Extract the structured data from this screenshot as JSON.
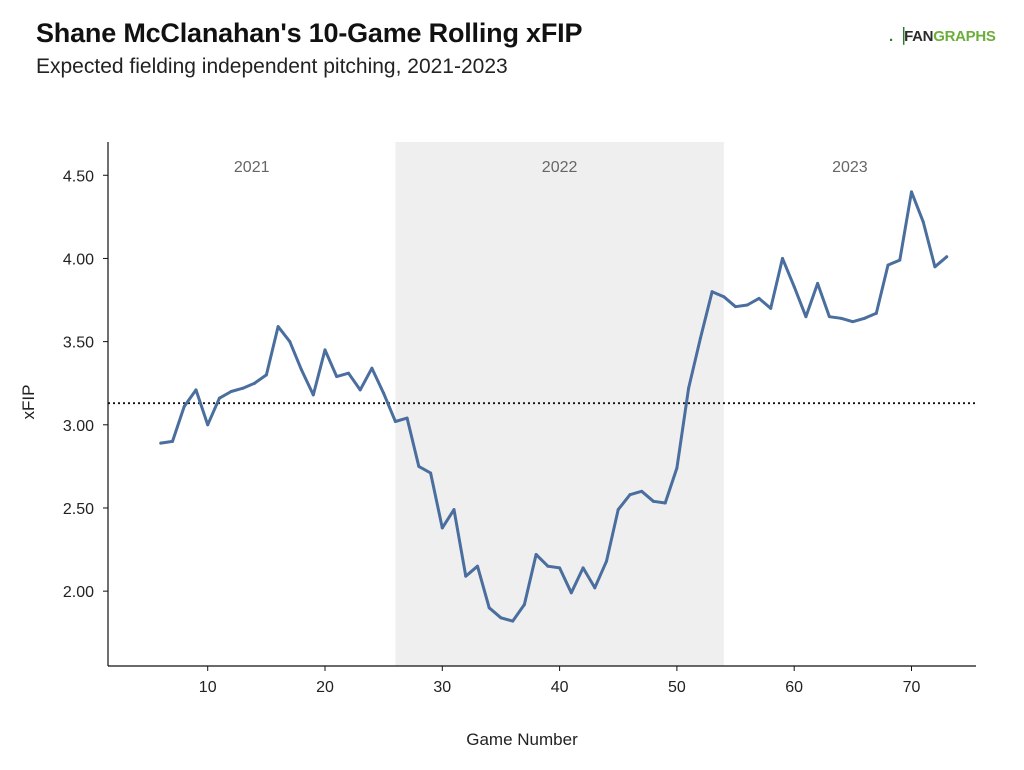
{
  "header": {
    "title": "Shane McClanahan's 10-Game Rolling xFIP",
    "subtitle": "Expected fielding independent pitching, 2021-2023",
    "logo_mark": ".▕",
    "logo_fan": "FAN",
    "logo_graphs": "GRAPHS"
  },
  "colors": {
    "line": "#4a6e9e",
    "band": "#efefef",
    "reference_line": "#111111"
  },
  "chart_data": {
    "type": "line",
    "title": "Shane McClanahan's 10-Game Rolling xFIP",
    "subtitle": "Expected fielding independent pitching, 2021-2023",
    "xlabel": "Game Number",
    "ylabel": "xFIP",
    "xlim": [
      1.5,
      75.5
    ],
    "ylim": [
      1.55,
      4.7
    ],
    "xticks": [
      10,
      20,
      30,
      40,
      50,
      60,
      70
    ],
    "yticks": [
      2.0,
      2.5,
      3.0,
      3.5,
      4.0,
      4.5
    ],
    "ytick_labels": [
      "2.00",
      "2.50",
      "3.00",
      "3.50",
      "4.00",
      "4.50"
    ],
    "reference_line": {
      "y": 3.13,
      "style": "dotted"
    },
    "season_bands": [
      {
        "label": "2021",
        "start": 1.5,
        "end": 26,
        "shaded": false
      },
      {
        "label": "2022",
        "start": 26,
        "end": 54,
        "shaded": true
      },
      {
        "label": "2023",
        "start": 54,
        "end": 75.5,
        "shaded": false
      }
    ],
    "grid": false,
    "series": [
      {
        "x": [
          6,
          7,
          8,
          9,
          10,
          11,
          12,
          13,
          14,
          15,
          16,
          17,
          18,
          19,
          20,
          21,
          22,
          23,
          24,
          25,
          26,
          27,
          28,
          29,
          30,
          31,
          32,
          33,
          34,
          35,
          36,
          37,
          38,
          39,
          40,
          41,
          42,
          43,
          44,
          45,
          46,
          47,
          48,
          49,
          50,
          51,
          52,
          53,
          54,
          55,
          56,
          57,
          58,
          59,
          60,
          61,
          62,
          63,
          64,
          65,
          66,
          67,
          68,
          69,
          70,
          71,
          72,
          73
        ],
        "values": [
          2.89,
          2.9,
          3.11,
          3.21,
          3.0,
          3.16,
          3.2,
          3.22,
          3.25,
          3.3,
          3.59,
          3.5,
          3.33,
          3.18,
          3.45,
          3.29,
          3.31,
          3.21,
          3.34,
          3.19,
          3.02,
          3.04,
          2.75,
          2.71,
          2.38,
          2.49,
          2.09,
          2.15,
          1.9,
          1.84,
          1.82,
          1.92,
          2.22,
          2.15,
          2.14,
          1.99,
          2.14,
          2.02,
          2.18,
          2.49,
          2.58,
          2.6,
          2.54,
          2.53,
          2.74,
          3.22,
          3.52,
          3.8,
          3.77,
          3.71,
          3.72,
          3.76,
          3.7,
          4.0,
          3.83,
          3.65,
          3.85,
          3.65,
          3.64,
          3.62,
          3.64,
          3.67,
          3.96,
          3.99,
          4.4,
          4.22,
          3.95,
          4.01
        ]
      }
    ]
  }
}
